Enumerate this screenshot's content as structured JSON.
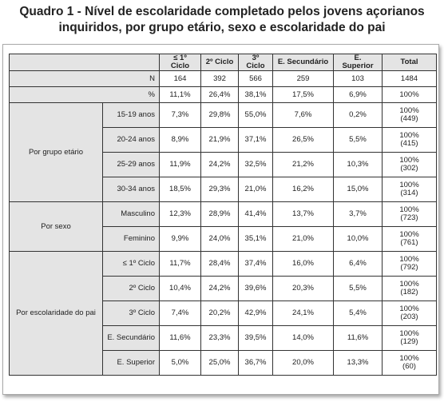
{
  "title": [
    "Quadro 1 - Nível de escolaridade completado pelos jovens açorianos",
    "inquiridos, por grupo etário, sexo e escolaridade do pai"
  ],
  "table": {
    "header": [
      "≤ 1º Ciclo",
      "2º Ciclo",
      "3º Ciclo",
      "E. Secundário",
      "E. Superior",
      "Total"
    ],
    "summary_rows": [
      {
        "label": "N",
        "cells": [
          "164",
          "392",
          "566",
          "259",
          "103",
          "1484"
        ]
      },
      {
        "label": "%",
        "cells": [
          "11,1%",
          "26,4%",
          "38,1%",
          "17,5%",
          "6,9%",
          "100%"
        ]
      }
    ],
    "groups": [
      {
        "label": "Por grupo etário",
        "rows": [
          {
            "label": "15-19 anos",
            "cells": [
              "7,3%",
              "29,8%",
              "55,0%",
              "7,6%",
              "0,2%"
            ],
            "total": [
              "100%",
              "(449)"
            ]
          },
          {
            "label": "20-24 anos",
            "cells": [
              "8,9%",
              "21,9%",
              "37,1%",
              "26,5%",
              "5,5%"
            ],
            "total": [
              "100%",
              "(415)"
            ]
          },
          {
            "label": "25-29 anos",
            "cells": [
              "11,9%",
              "24,2%",
              "32,5%",
              "21,2%",
              "10,3%"
            ],
            "total": [
              "100%",
              "(302)"
            ]
          },
          {
            "label": "30-34 anos",
            "cells": [
              "18,5%",
              "29,3%",
              "21,0%",
              "16,2%",
              "15,0%"
            ],
            "total": [
              "100%",
              "(314)"
            ]
          }
        ]
      },
      {
        "label": "Por sexo",
        "rows": [
          {
            "label": "Masculino",
            "cells": [
              "12,3%",
              "28,9%",
              "41,4%",
              "13,7%",
              "3,7%"
            ],
            "total": [
              "100%",
              "(723)"
            ]
          },
          {
            "label": "Feminino",
            "cells": [
              "9,9%",
              "24,0%",
              "35,1%",
              "21,0%",
              "10,0%"
            ],
            "total": [
              "100%",
              "(761)"
            ]
          }
        ]
      },
      {
        "label": "Por escolaridade do pai",
        "rows": [
          {
            "label": "≤ 1º Ciclo",
            "cells": [
              "11,7%",
              "28,4%",
              "37,4%",
              "16,0%",
              "6,4%"
            ],
            "total": [
              "100%",
              "(792)"
            ]
          },
          {
            "label": "2º Ciclo",
            "cells": [
              "10,4%",
              "24,2%",
              "39,6%",
              "20,3%",
              "5,5%"
            ],
            "total": [
              "100%",
              "(182)"
            ]
          },
          {
            "label": "3º Ciclo",
            "cells": [
              "7,4%",
              "20,2%",
              "42,9%",
              "24,1%",
              "5,4%"
            ],
            "total": [
              "100%",
              "(203)"
            ]
          },
          {
            "label": "E. Secundário",
            "cells": [
              "11,6%",
              "23,3%",
              "39,5%",
              "14,0%",
              "11,6%"
            ],
            "total": [
              "100%",
              "(129)"
            ]
          },
          {
            "label": "E. Superior",
            "cells": [
              "5,0%",
              "25,0%",
              "36,7%",
              "20,0%",
              "13,3%"
            ],
            "total": [
              "100%",
              "(60)"
            ]
          }
        ]
      }
    ]
  }
}
